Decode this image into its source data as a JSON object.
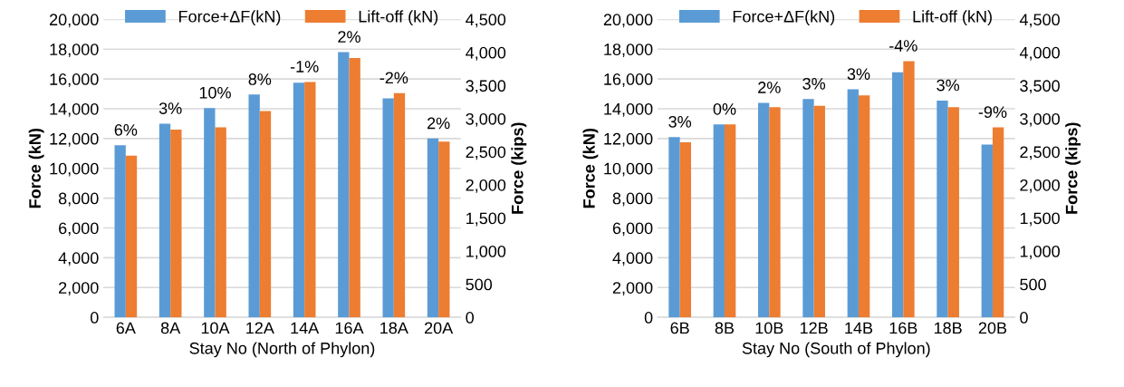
{
  "chart_data": [
    {
      "type": "bar",
      "categories": [
        "6A",
        "8A",
        "10A",
        "12A",
        "14A",
        "16A",
        "18A",
        "20A"
      ],
      "xlabel": "Stay No (North of Phylon)",
      "ylabel": "Force (kN)",
      "y2label": "Force (kips)",
      "series": [
        {
          "name": "Force+ΔF(kN)",
          "color": "#5b9bd5",
          "values": [
            11550,
            13000,
            14050,
            14950,
            15750,
            17800,
            14700,
            12000
          ]
        },
        {
          "name": "Lift-off (kN)",
          "color": "#ed7d31",
          "values": [
            10850,
            12600,
            12750,
            13850,
            15800,
            17400,
            15050,
            11800
          ]
        }
      ],
      "ylim": [
        0,
        20000
      ],
      "yticks": [
        0,
        {
          "value": 2000,
          "label": "2,000"
        },
        {
          "value": 4000,
          "label": "4,000"
        },
        {
          "value": 6000,
          "label": "6,000"
        },
        {
          "value": 8000,
          "label": "8,000"
        },
        {
          "value": 10000,
          "label": "10,000"
        },
        {
          "value": 12000,
          "label": "12,000"
        },
        {
          "value": 14000,
          "label": "14,000"
        },
        {
          "value": 16000,
          "label": "16,000"
        },
        {
          "value": 18000,
          "label": "18,000"
        },
        {
          "value": 20000,
          "label": "20,000"
        }
      ],
      "y2lim": [
        0,
        4500
      ],
      "y2ticks": [
        0,
        500,
        {
          "value": 1000,
          "label": "1,000"
        },
        {
          "value": 1500,
          "label": "1,500"
        },
        {
          "value": 2000,
          "label": "2,000"
        },
        {
          "value": 2500,
          "label": "2,500"
        },
        {
          "value": 3000,
          "label": "3,000"
        },
        {
          "value": 3500,
          "label": "3,500"
        },
        {
          "value": 4000,
          "label": "4,000"
        },
        {
          "value": 4500,
          "label": "4,500"
        }
      ],
      "grid": "y",
      "legend": "top",
      "annotations": [
        {
          "text": "6%",
          "x": "6A",
          "y": 11550
        },
        {
          "text": "3%",
          "x": "8A",
          "y": 13000
        },
        {
          "text": "10%",
          "x": "10A",
          "y": 14050
        },
        {
          "text": "8%",
          "x": "12A",
          "y": 14950
        },
        {
          "text": "-1%",
          "x": "14A",
          "y": 15800
        },
        {
          "text": "2%",
          "x": "16A",
          "y": 17800
        },
        {
          "text": "-2%",
          "x": "18A",
          "y": 15050
        },
        {
          "text": "2%",
          "x": "20A",
          "y": 12000
        }
      ]
    },
    {
      "type": "bar",
      "categories": [
        "6B",
        "8B",
        "10B",
        "12B",
        "14B",
        "16B",
        "18B",
        "20B"
      ],
      "xlabel": "Stay No (South of Phylon)",
      "ylabel": "Force (kN)",
      "y2label": "Force (kips)",
      "series": [
        {
          "name": "Force+ΔF(kN)",
          "color": "#5b9bd5",
          "values": [
            12100,
            12950,
            14400,
            14650,
            15300,
            16450,
            14550,
            11600
          ]
        },
        {
          "name": "Lift-off (kN)",
          "color": "#ed7d31",
          "values": [
            11750,
            12950,
            14100,
            14200,
            14900,
            17200,
            14100,
            12750
          ]
        }
      ],
      "ylim": [
        0,
        20000
      ],
      "yticks": [
        0,
        {
          "value": 2000,
          "label": "2,000"
        },
        {
          "value": 4000,
          "label": "4,000"
        },
        {
          "value": 6000,
          "label": "6,000"
        },
        {
          "value": 8000,
          "label": "8,000"
        },
        {
          "value": 10000,
          "label": "10,000"
        },
        {
          "value": 12000,
          "label": "12,000"
        },
        {
          "value": 14000,
          "label": "14,000"
        },
        {
          "value": 16000,
          "label": "16,000"
        },
        {
          "value": 18000,
          "label": "18,000"
        },
        {
          "value": 20000,
          "label": "20,000"
        }
      ],
      "y2lim": [
        0,
        4500
      ],
      "y2ticks": [
        0,
        500,
        {
          "value": 1000,
          "label": "1,000"
        },
        {
          "value": 1500,
          "label": "1,500"
        },
        {
          "value": 2000,
          "label": "2,000"
        },
        {
          "value": 2500,
          "label": "2,500"
        },
        {
          "value": 3000,
          "label": "3,000"
        },
        {
          "value": 3500,
          "label": "3,500"
        },
        {
          "value": 4000,
          "label": "4,000"
        },
        {
          "value": 4500,
          "label": "4,500"
        }
      ],
      "grid": "y",
      "legend": "top",
      "annotations": [
        {
          "text": "3%",
          "x": "6B",
          "y": 12100
        },
        {
          "text": "0%",
          "x": "8B",
          "y": 12950
        },
        {
          "text": "2%",
          "x": "10B",
          "y": 14400
        },
        {
          "text": "3%",
          "x": "12B",
          "y": 14650
        },
        {
          "text": "3%",
          "x": "14B",
          "y": 15300
        },
        {
          "text": "-4%",
          "x": "16B",
          "y": 17200
        },
        {
          "text": "3%",
          "x": "18B",
          "y": 14550
        },
        {
          "text": "-9%",
          "x": "20B",
          "y": 12750
        }
      ]
    }
  ]
}
